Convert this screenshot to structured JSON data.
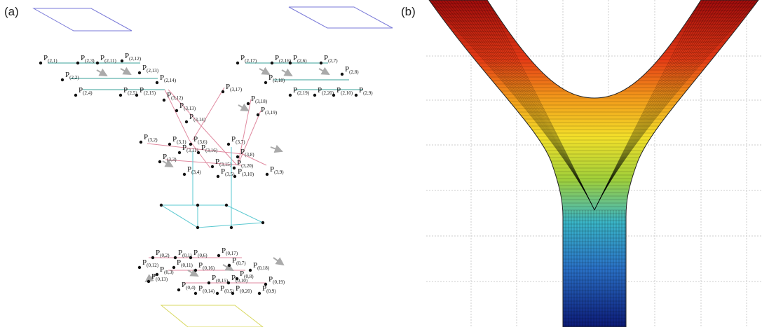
{
  "panel_labels": [
    "(a)",
    "(b)"
  ],
  "labels": [
    {
      "base": "P",
      "sub": "(2,1)"
    },
    {
      "base": "P",
      "sub": "(2,3)"
    },
    {
      "base": "P",
      "sub": "(2,11)"
    },
    {
      "base": "P",
      "sub": "(2,12)"
    },
    {
      "base": "P",
      "sub": "(2,2)"
    },
    {
      "base": "P",
      "sub": "(2,13)"
    },
    {
      "base": "P",
      "sub": "(2,14)"
    },
    {
      "base": "P",
      "sub": "(2,4)"
    },
    {
      "base": "P",
      "sub": "(2,5)"
    },
    {
      "base": "P",
      "sub": "(2,15)"
    },
    {
      "base": "P",
      "sub": "(3,12)"
    },
    {
      "base": "P",
      "sub": "(2,17)"
    },
    {
      "base": "P",
      "sub": "(2,16)"
    },
    {
      "base": "P",
      "sub": "(2,6)"
    },
    {
      "base": "P",
      "sub": "(2,7)"
    },
    {
      "base": "P",
      "sub": "(2,18)"
    },
    {
      "base": "P",
      "sub": "(2,8)"
    },
    {
      "base": "P",
      "sub": "(2,19)"
    },
    {
      "base": "P",
      "sub": "(2,20)"
    },
    {
      "base": "P",
      "sub": "(2,10)"
    },
    {
      "base": "P",
      "sub": "(2,9)"
    },
    {
      "base": "P",
      "sub": "(3,17)"
    },
    {
      "base": "P",
      "sub": "(3,13)"
    },
    {
      "base": "P",
      "sub": "(3,18)"
    },
    {
      "base": "P",
      "sub": "(3,14)"
    },
    {
      "base": "P",
      "sub": "(3,19)"
    },
    {
      "base": "P",
      "sub": "(3,2)"
    },
    {
      "base": "P",
      "sub": "(3,1)"
    },
    {
      "base": "P",
      "sub": "(3,6)"
    },
    {
      "base": "P",
      "sub": "(3,11)"
    },
    {
      "base": "P",
      "sub": "(3,16)"
    },
    {
      "base": "P",
      "sub": "(3,7)"
    },
    {
      "base": "P",
      "sub": "(3,8)"
    },
    {
      "base": "P",
      "sub": "(3,3)"
    },
    {
      "base": "P",
      "sub": "(3,4)"
    },
    {
      "base": "P",
      "sub": "(3,15)"
    },
    {
      "base": "P",
      "sub": "(3,20)"
    },
    {
      "base": "P",
      "sub": "(3,5)"
    },
    {
      "base": "P",
      "sub": "(3,10)"
    },
    {
      "base": "P",
      "sub": "(3,9)"
    },
    {
      "base": "P",
      "sub": "(0,2)"
    },
    {
      "base": "P",
      "sub": "(0,1)"
    },
    {
      "base": "P",
      "sub": "(0,6)"
    },
    {
      "base": "P",
      "sub": "(0,17)"
    },
    {
      "base": "P",
      "sub": "(0,12)"
    },
    {
      "base": "P",
      "sub": "(0,11)"
    },
    {
      "base": "P",
      "sub": "(0,16)"
    },
    {
      "base": "P",
      "sub": "(0,7)"
    },
    {
      "base": "P",
      "sub": "(0,18)"
    },
    {
      "base": "P",
      "sub": "(0,3)"
    },
    {
      "base": "P",
      "sub": "(0,13)"
    },
    {
      "base": "P",
      "sub": "(0,8)"
    },
    {
      "base": "P",
      "sub": "(0,4)"
    },
    {
      "base": "P",
      "sub": "(0,15)"
    },
    {
      "base": "P",
      "sub": "(0,10)"
    },
    {
      "base": "P",
      "sub": "(0,19)"
    },
    {
      "base": "P",
      "sub": "(0,14)"
    },
    {
      "base": "P",
      "sub": "(0,5)"
    },
    {
      "base": "P",
      "sub": "(0,20)"
    },
    {
      "base": "P",
      "sub": "(0,9)"
    }
  ]
}
